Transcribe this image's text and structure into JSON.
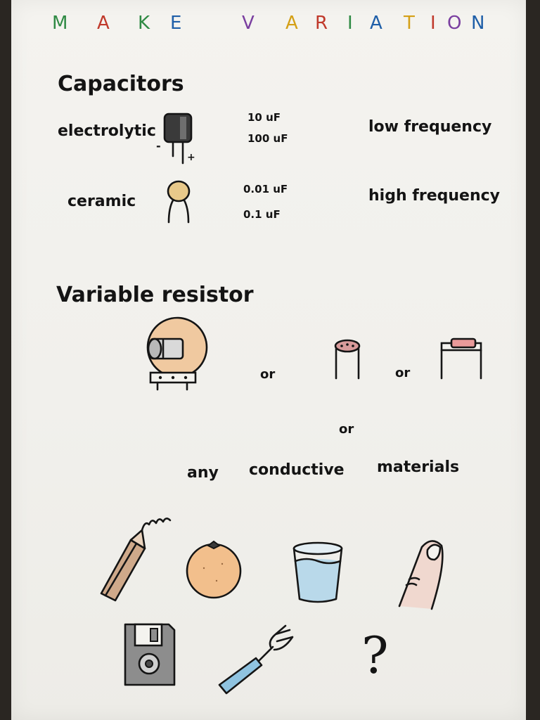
{
  "title": {
    "make": [
      "M",
      "A",
      "K",
      "E"
    ],
    "variation": [
      "V",
      "A",
      "R",
      "I",
      "A",
      "T",
      "I",
      "O",
      "N"
    ],
    "make_colors": [
      "#2f8a44",
      "#c0392b",
      "#2f8a44",
      "#1f5fa8"
    ],
    "variation_colors": [
      "#7a3fa0",
      "#d4a017",
      "#c0392b",
      "#2f8a44",
      "#1f5fa8",
      "#d4a017",
      "#c0392b",
      "#7a3fa0",
      "#1f5fa8"
    ]
  },
  "capacitors": {
    "heading": "Capacitors",
    "electrolytic": {
      "label": "electrolytic",
      "minus": "-",
      "plus": "+",
      "values": [
        "10 uF",
        "100 uF"
      ],
      "use": "low frequency",
      "icon": "electrolytic-capacitor-icon",
      "color": "#3a3a3a"
    },
    "ceramic": {
      "label": "ceramic",
      "values": [
        "0.01 uF",
        "0.1 uF"
      ],
      "use": "high frequency",
      "icon": "ceramic-capacitor-icon",
      "color": "#e8c98a"
    }
  },
  "variable_resistor": {
    "heading": "Variable resistor",
    "or_labels": [
      "or",
      "or",
      "or"
    ],
    "any": "any",
    "conductive": "conductive",
    "materials": "materials",
    "icons": [
      "potentiometer-icon",
      "photoresistor-icon",
      "thermistor-icon"
    ]
  },
  "materials": {
    "icons": [
      "pencil-icon",
      "orange-icon",
      "water-glass-icon",
      "finger-icon",
      "floppy-disk-icon",
      "fork-icon"
    ],
    "question": "?",
    "colors": {
      "wood": "#cfa98a",
      "orange": "#f2bf8c",
      "water": "#b9d9ea",
      "skin": "#f0d8cf",
      "disk": "#8d8d8d",
      "fork_handle": "#8fc3e0"
    }
  }
}
